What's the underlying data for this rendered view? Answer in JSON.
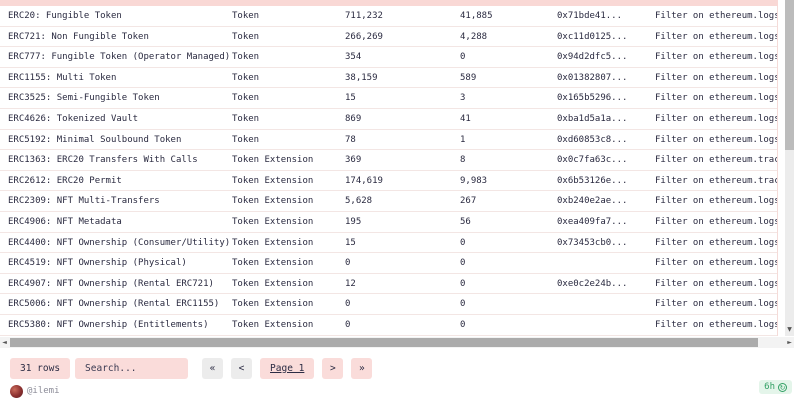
{
  "table": {
    "rows": [
      {
        "name": "ERC20: Fungible Token",
        "type": "Token",
        "contracts": "711,232",
        "active": "41,885",
        "hex": "0x71bde41...",
        "filter": "Filter on ethereum.logs t"
      },
      {
        "name": "ERC721: Non Fungible Token",
        "type": "Token",
        "contracts": "266,269",
        "active": "4,288",
        "hex": "0xc11d0125...",
        "filter": "Filter on ethereum.logs t"
      },
      {
        "name": "ERC777: Fungible Token (Operator Managed)",
        "type": "Token",
        "contracts": "354",
        "active": "0",
        "hex": "0x94d2dfc5...",
        "filter": "Filter on ethereum.logs t"
      },
      {
        "name": "ERC1155: Multi Token",
        "type": "Token",
        "contracts": "38,159",
        "active": "589",
        "hex": "0x01382807...",
        "filter": "Filter on ethereum.logs t"
      },
      {
        "name": "ERC3525: Semi-Fungible Token",
        "type": "Token",
        "contracts": "15",
        "active": "3",
        "hex": "0x165b5296...",
        "filter": "Filter on ethereum.logs t"
      },
      {
        "name": "ERC4626: Tokenized Vault",
        "type": "Token",
        "contracts": "869",
        "active": "41",
        "hex": "0xba1d5a1a...",
        "filter": "Filter on ethereum.logs t"
      },
      {
        "name": "ERC5192: Minimal Soulbound Token",
        "type": "Token",
        "contracts": "78",
        "active": "1",
        "hex": "0xd60853c8...",
        "filter": "Filter on ethereum.logs t"
      },
      {
        "name": "ERC1363: ERC20 Transfers With Calls",
        "type": "Token Extension",
        "contracts": "369",
        "active": "8",
        "hex": "0x0c7fa63c...",
        "filter": "Filter on ethereum.traces"
      },
      {
        "name": "ERC2612: ERC20 Permit",
        "type": "Token Extension",
        "contracts": "174,619",
        "active": "9,983",
        "hex": "0x6b53126e...",
        "filter": "Filter on ethereum.traces"
      },
      {
        "name": "ERC2309: NFT Multi-Transfers",
        "type": "Token Extension",
        "contracts": "5,628",
        "active": "267",
        "hex": "0xb240e2ae...",
        "filter": "Filter on ethereum.logs t"
      },
      {
        "name": "ERC4906: NFT Metadata",
        "type": "Token Extension",
        "contracts": "195",
        "active": "56",
        "hex": "0xea409fa7...",
        "filter": "Filter on ethereum.logs t"
      },
      {
        "name": "ERC4400: NFT Ownership (Consumer/Utility)",
        "type": "Token Extension",
        "contracts": "15",
        "active": "0",
        "hex": "0x73453cb0...",
        "filter": "Filter on ethereum.logs t"
      },
      {
        "name": "ERC4519: NFT Ownership (Physical)",
        "type": "Token Extension",
        "contracts": "0",
        "active": "0",
        "hex": "",
        "filter": "Filter on ethereum.logs t"
      },
      {
        "name": "ERC4907: NFT Ownership (Rental ERC721)",
        "type": "Token Extension",
        "contracts": "12",
        "active": "0",
        "hex": "0xe0c2e24b...",
        "filter": "Filter on ethereum.logs t"
      },
      {
        "name": "ERC5006: NFT Ownership (Rental ERC1155)",
        "type": "Token Extension",
        "contracts": "0",
        "active": "0",
        "hex": "",
        "filter": "Filter on ethereum.logs t"
      },
      {
        "name": "ERC5380: NFT Ownership (Entitlements)",
        "type": "Token Extension",
        "contracts": "0",
        "active": "0",
        "hex": "",
        "filter": "Filter on ethereum.logs t"
      }
    ]
  },
  "footer": {
    "row_count": "31 rows",
    "search_placeholder": "Search...",
    "pagination": {
      "first": "«",
      "prev": "<",
      "page": "Page 1",
      "next": ">",
      "last": "»"
    }
  },
  "attribution": {
    "username": "@ilemi"
  },
  "statusbar": {
    "cache_badge": "6h"
  },
  "scrollbars": {
    "up": "▲",
    "down": "▼",
    "left": "◄",
    "right": "►"
  },
  "colors": {
    "accent_pink": "#fadcda",
    "header_pink": "#f9d8d5",
    "button_gray": "#ececec",
    "badge_green_bg": "#e4f5ea",
    "badge_green_text": "#33a065",
    "text": "#2a2a40",
    "muted_text": "#8d8d99"
  }
}
